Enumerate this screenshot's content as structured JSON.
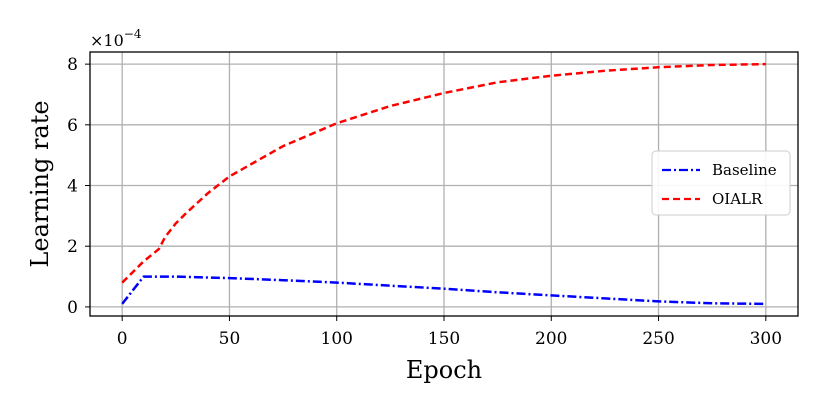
{
  "chart_data": {
    "type": "line",
    "xlabel": "Epoch",
    "ylabel": "Learning rate",
    "y_scale_label": "×10",
    "y_scale_exponent": "−4",
    "xlim": [
      -15,
      315
    ],
    "ylim": [
      -0.3,
      8.4
    ],
    "x_ticks": [
      0,
      50,
      100,
      150,
      200,
      250,
      300
    ],
    "y_ticks": [
      0,
      2,
      4,
      6,
      8
    ],
    "grid": true,
    "legend_position": "center-right",
    "series": [
      {
        "name": "Baseline",
        "color": "#0000ff",
        "line_style": "dash-dot",
        "x": [
          0,
          10,
          25,
          50,
          75,
          100,
          125,
          150,
          175,
          200,
          225,
          250,
          275,
          300
        ],
        "y": [
          0.1,
          1.0,
          1.0,
          0.95,
          0.88,
          0.8,
          0.7,
          0.6,
          0.48,
          0.38,
          0.28,
          0.18,
          0.12,
          0.1
        ]
      },
      {
        "name": "OIALR",
        "color": "#ff0000",
        "line_style": "dashed",
        "x": [
          0,
          10,
          17,
          20,
          25,
          30,
          40,
          50,
          75,
          100,
          125,
          150,
          175,
          200,
          225,
          250,
          275,
          300
        ],
        "y": [
          0.8,
          1.5,
          1.9,
          2.3,
          2.75,
          3.1,
          3.75,
          4.3,
          5.3,
          6.05,
          6.62,
          7.05,
          7.4,
          7.62,
          7.78,
          7.9,
          7.97,
          8.0
        ]
      }
    ]
  }
}
